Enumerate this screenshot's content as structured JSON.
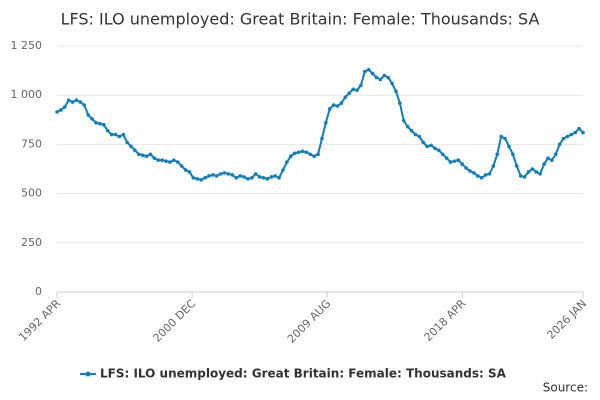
{
  "chart_data": {
    "type": "line",
    "title": "LFS: ILO unemployed: Great Britain: Female: Thousands: SA",
    "source": "Source:",
    "x": [
      1992.25,
      1992.5,
      1992.75,
      1993.0,
      1993.25,
      1993.5,
      1993.75,
      1994.0,
      1994.25,
      1994.5,
      1994.75,
      1995.0,
      1995.25,
      1995.5,
      1995.75,
      1996.0,
      1996.25,
      1996.5,
      1996.75,
      1997.0,
      1997.25,
      1997.5,
      1997.75,
      1998.0,
      1998.25,
      1998.5,
      1998.75,
      1999.0,
      1999.25,
      1999.5,
      1999.75,
      2000.0,
      2000.25,
      2000.5,
      2000.75,
      2001.0,
      2001.25,
      2001.5,
      2001.75,
      2002.0,
      2002.25,
      2002.5,
      2002.75,
      2003.0,
      2003.25,
      2003.5,
      2003.75,
      2004.0,
      2004.25,
      2004.5,
      2004.75,
      2005.0,
      2005.25,
      2005.5,
      2005.75,
      2006.0,
      2006.25,
      2006.5,
      2006.75,
      2007.0,
      2007.25,
      2007.5,
      2007.75,
      2008.0,
      2008.25,
      2008.5,
      2008.75,
      2009.0,
      2009.25,
      2009.5,
      2009.75,
      2010.0,
      2010.25,
      2010.5,
      2010.75,
      2011.0,
      2011.25,
      2011.5,
      2011.75,
      2012.0,
      2012.25,
      2012.5,
      2012.75,
      2013.0,
      2013.25,
      2013.5,
      2013.75,
      2014.0,
      2014.25,
      2014.5,
      2014.75,
      2015.0,
      2015.25,
      2015.5,
      2015.75,
      2016.0,
      2016.25,
      2016.5,
      2016.75,
      2017.0,
      2017.25,
      2017.5,
      2017.75,
      2018.0,
      2018.25,
      2018.5,
      2018.75,
      2019.0,
      2019.25,
      2019.5,
      2019.75,
      2020.0,
      2020.25,
      2020.5,
      2020.75,
      2021.0,
      2021.25,
      2021.5,
      2021.75,
      2022.0,
      2022.25,
      2022.5,
      2022.75,
      2023.0,
      2023.25,
      2023.5,
      2023.75,
      2024.0,
      2024.25,
      2024.5,
      2024.75,
      2025.0,
      2025.25,
      2025.5,
      2025.75,
      2026.0
    ],
    "series": [
      {
        "name": "LFS: ILO unemployed: Great Britain: Female: Thousands: SA",
        "color": "#0e7fbf",
        "values": [
          915,
          925,
          940,
          975,
          965,
          975,
          965,
          950,
          900,
          880,
          860,
          855,
          850,
          820,
          800,
          800,
          790,
          800,
          760,
          740,
          720,
          700,
          695,
          690,
          700,
          680,
          670,
          670,
          665,
          660,
          670,
          660,
          640,
          620,
          610,
          580,
          575,
          570,
          580,
          590,
          595,
          590,
          600,
          605,
          600,
          595,
          580,
          590,
          585,
          575,
          580,
          600,
          585,
          580,
          575,
          585,
          590,
          580,
          620,
          660,
          690,
          705,
          710,
          715,
          710,
          700,
          690,
          700,
          780,
          860,
          930,
          950,
          945,
          960,
          990,
          1010,
          1030,
          1025,
          1050,
          1120,
          1130,
          1110,
          1090,
          1080,
          1100,
          1090,
          1060,
          1020,
          960,
          870,
          840,
          820,
          800,
          790,
          760,
          740,
          745,
          730,
          720,
          700,
          680,
          660,
          665,
          670,
          650,
          630,
          615,
          605,
          590,
          580,
          595,
          600,
          640,
          700,
          790,
          780,
          740,
          700,
          640,
          590,
          585,
          610,
          625,
          610,
          600,
          650,
          680,
          670,
          700,
          750,
          780,
          790,
          800,
          810,
          830,
          810
        ]
      }
    ],
    "xlim": [
      1992.25,
      2026.0
    ],
    "xticks": [
      {
        "value": 1992.25,
        "label": "1992 APR"
      },
      {
        "value": 2000.917,
        "label": "2000 DEC"
      },
      {
        "value": 2009.583,
        "label": "2009 AUG"
      },
      {
        "value": 2018.25,
        "label": "2018 APR"
      },
      {
        "value": 2026.0,
        "label": "2026 JAN"
      }
    ],
    "ylim": [
      0,
      1250
    ],
    "yticks": [
      0,
      250,
      500,
      750,
      {
        "value": 1000,
        "label": "1 000"
      },
      {
        "value": 1250,
        "label": "1 250"
      }
    ],
    "grid": true
  }
}
